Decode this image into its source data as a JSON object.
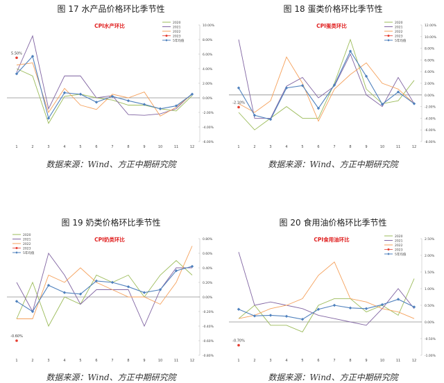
{
  "panels": [
    {
      "figure_title": "图 17   水产品价格环比季节性",
      "source": "数据来源：Wind、方正中期研究院"
    },
    {
      "figure_title": "图 18   蛋类价格环比季节性",
      "source": "数据来源：Wind、方正中期研究院"
    },
    {
      "figure_title": "图 19   奶类价格环比季节性",
      "source": "数据来源：Wind、方正中期研究院"
    },
    {
      "figure_title": "图 20   食用油价格环比季节性",
      "source": "数据来源：Wind、方正中期研究院"
    }
  ],
  "colors": {
    "2020": "#9bbb59",
    "2021": "#8064a2",
    "2022": "#f5a05a",
    "2023": "#e63b2e",
    "avg": "#4f81bd"
  },
  "chart_data": [
    {
      "type": "line",
      "title": "CPI水产环比",
      "categories": [
        "1",
        "2",
        "3",
        "4",
        "5",
        "6",
        "7",
        "8",
        "9",
        "10",
        "11",
        "12"
      ],
      "ylim": [
        -6,
        10
      ],
      "yticks": [
        -6,
        -4,
        -2,
        0,
        2,
        4,
        6,
        8,
        10
      ],
      "ytick_labels": [
        "-6.00%",
        "-4.00%",
        "-2.00%",
        "0.00%",
        "2.00%",
        "4.00%",
        "6.00%",
        "8.00%",
        "10.00%"
      ],
      "annotation": "5.50%",
      "legend_position": "top-right",
      "series": [
        {
          "name": "2020",
          "key": "2020",
          "values": [
            4.0,
            3.0,
            -3.5,
            0.2,
            0.5,
            0.0,
            -0.3,
            -1.0,
            -1.0,
            -1.5,
            -1.8,
            0.3
          ]
        },
        {
          "name": "2021",
          "key": "2021",
          "values": [
            3.5,
            8.5,
            -1.5,
            3.0,
            3.0,
            0.0,
            0.3,
            -2.3,
            -2.4,
            -2.2,
            -1.5,
            0.6
          ]
        },
        {
          "name": "2022",
          "key": "2022",
          "values": [
            4.5,
            4.8,
            -2.0,
            1.3,
            -1.0,
            -1.6,
            0.5,
            0.0,
            0.8,
            -2.5,
            -1.3,
            0.5
          ]
        },
        {
          "name": "2023",
          "key": "2023",
          "values": [
            5.5,
            null,
            null,
            null,
            null,
            null,
            null,
            null,
            null,
            null,
            null,
            null
          ]
        },
        {
          "name": "5年均值",
          "key": "avg",
          "values": [
            3.3,
            5.7,
            -2.8,
            0.7,
            0.5,
            -0.6,
            0.2,
            -0.4,
            -0.9,
            -1.5,
            -1.1,
            0.5
          ]
        }
      ]
    },
    {
      "type": "line",
      "title": "CPI蛋类环比",
      "categories": [
        "1",
        "2",
        "3",
        "4",
        "5",
        "6",
        "7",
        "8",
        "9",
        "10",
        "11",
        "12"
      ],
      "ylim": [
        -8,
        12
      ],
      "yticks": [
        -8,
        -6,
        -4,
        -2,
        0,
        2,
        4,
        6,
        8,
        10,
        12
      ],
      "ytick_labels": [
        "-8.00%",
        "-6.00%",
        "-4.00%",
        "-2.00%",
        "0.00%",
        "2.00%",
        "4.00%",
        "6.00%",
        "8.00%",
        "10.00%",
        "12.00%"
      ],
      "annotation": "-2.10%",
      "legend_position": "top-right",
      "series": [
        {
          "name": "2020",
          "key": "2020",
          "values": [
            -3.0,
            -6.0,
            -4.0,
            -2.0,
            -4.0,
            -4.0,
            2.0,
            9.5,
            1.0,
            -1.5,
            -1.0,
            2.5
          ]
        },
        {
          "name": "2021",
          "key": "2021",
          "values": [
            9.5,
            -4.0,
            -4.0,
            1.5,
            3.0,
            -0.5,
            1.5,
            7.0,
            0.0,
            -2.0,
            3.0,
            -1.5
          ]
        },
        {
          "name": "2022",
          "key": "2022",
          "values": [
            -1.5,
            -3.0,
            -1.0,
            6.5,
            2.0,
            -4.5,
            1.0,
            3.5,
            5.5,
            2.0,
            1.0,
            -1.5
          ]
        },
        {
          "name": "2023",
          "key": "2023",
          "values": [
            -2.1,
            null,
            null,
            null,
            null,
            null,
            null,
            null,
            null,
            null,
            null,
            null
          ]
        },
        {
          "name": "5年均值",
          "key": "avg",
          "values": [
            1.2,
            -3.5,
            -4.2,
            1.2,
            1.6,
            -2.3,
            1.7,
            7.5,
            3.2,
            -1.6,
            0.5,
            -1.5
          ]
        }
      ]
    },
    {
      "type": "line",
      "title": "CPI奶类环比",
      "categories": [
        "1",
        "2",
        "3",
        "4",
        "5",
        "6",
        "7",
        "8",
        "9",
        "10",
        "11",
        "12"
      ],
      "ylim": [
        -0.8,
        0.8
      ],
      "yticks": [
        -0.8,
        -0.6,
        -0.4,
        -0.2,
        0,
        0.2,
        0.4,
        0.6,
        0.8
      ],
      "ytick_labels": [
        "-0.80%",
        "-0.60%",
        "-0.40%",
        "-0.20%",
        "0.00%",
        "0.20%",
        "0.40%",
        "0.60%",
        "0.80%"
      ],
      "annotation": "-0.60%",
      "legend_position": "top-left",
      "series": [
        {
          "name": "2020",
          "key": "2020",
          "values": [
            -0.3,
            0.2,
            -0.4,
            0.0,
            -0.1,
            0.3,
            0.2,
            0.3,
            0.0,
            0.3,
            0.5,
            0.3
          ]
        },
        {
          "name": "2021",
          "key": "2021",
          "values": [
            0.2,
            -0.2,
            0.6,
            0.3,
            -0.1,
            0.1,
            0.1,
            0.1,
            -0.4,
            0.1,
            0.4,
            0.4
          ]
        },
        {
          "name": "2022",
          "key": "2022",
          "values": [
            -0.3,
            -0.3,
            0.3,
            0.2,
            0.4,
            0.2,
            0.1,
            0.0,
            0.0,
            -0.1,
            0.2,
            0.7
          ]
        },
        {
          "name": "2023",
          "key": "2023",
          "values": [
            -0.6,
            null,
            null,
            null,
            null,
            null,
            null,
            null,
            null,
            null,
            null,
            null
          ]
        },
        {
          "name": "5年均值",
          "key": "avg",
          "values": [
            -0.06,
            -0.2,
            0.16,
            0.06,
            0.04,
            0.22,
            0.2,
            0.14,
            0.06,
            0.1,
            0.36,
            0.42
          ]
        }
      ]
    },
    {
      "type": "line",
      "title": "CPI食用油环比",
      "categories": [
        "1",
        "2",
        "3",
        "4",
        "5",
        "6",
        "7",
        "8",
        "9",
        "10",
        "11",
        "12"
      ],
      "ylim": [
        -1.0,
        2.5
      ],
      "yticks": [
        -1.0,
        -0.5,
        0.0,
        0.5,
        1.0,
        1.5,
        2.0,
        2.5
      ],
      "ytick_labels": [
        "-1.00%",
        "-0.50%",
        "0.00%",
        "0.50%",
        "1.00%",
        "1.50%",
        "2.00%",
        "2.50%"
      ],
      "annotation": "-0.70%",
      "legend_position": "top-right",
      "series": [
        {
          "name": "2020",
          "key": "2020",
          "values": [
            0.1,
            0.5,
            -0.1,
            -0.1,
            -0.3,
            0.5,
            0.7,
            0.7,
            0.3,
            0.5,
            0.2,
            1.3
          ]
        },
        {
          "name": "2021",
          "key": "2021",
          "values": [
            2.1,
            0.5,
            0.6,
            0.5,
            0.4,
            0.2,
            0.1,
            0.0,
            -0.1,
            0.4,
            1.0,
            0.4
          ]
        },
        {
          "name": "2022",
          "key": "2022",
          "values": [
            0.1,
            0.2,
            0.4,
            0.5,
            0.7,
            1.4,
            1.8,
            0.7,
            0.6,
            0.4,
            0.3,
            0.1
          ]
        },
        {
          "name": "2023",
          "key": "2023",
          "values": [
            -0.7,
            null,
            null,
            null,
            null,
            null,
            null,
            null,
            null,
            null,
            null,
            null
          ]
        },
        {
          "name": "5年均值",
          "key": "avg",
          "values": [
            0.38,
            0.18,
            0.2,
            0.17,
            0.08,
            0.38,
            0.5,
            0.42,
            0.4,
            0.52,
            0.68,
            0.45
          ]
        }
      ]
    }
  ]
}
